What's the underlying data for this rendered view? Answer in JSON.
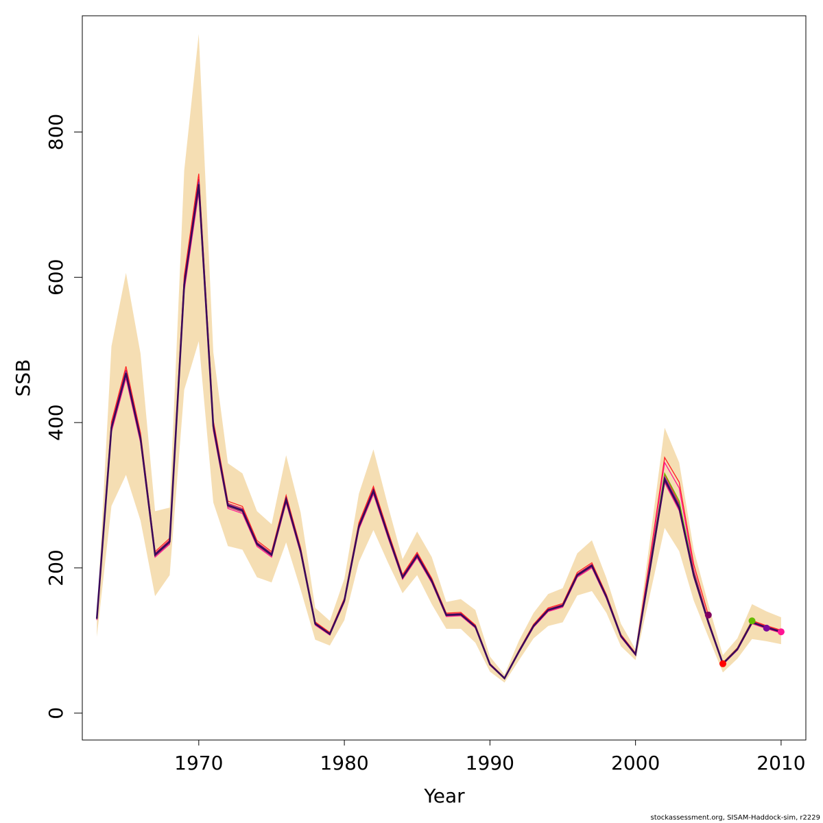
{
  "footer": "stockassessment.org, SISAM-Haddock-sim, r2229",
  "colors": {
    "band": "#f5deb3",
    "retro_lines": [
      "#ff2020",
      "#ff1493",
      "#e01050",
      "#b0306a",
      "#7030a0",
      "#6a1b6a",
      "#800080"
    ],
    "main_line": "#3a0a5a",
    "endpoints": [
      "#800060",
      "#ff0000",
      "#66bb00",
      "#7a0a9a",
      "#ff1493"
    ]
  },
  "chart_data": {
    "type": "line",
    "xlabel": "Year",
    "ylabel": "SSB",
    "xlim": [
      1962,
      2011.7
    ],
    "ylim": [
      -37,
      960
    ],
    "xticks": [
      1970,
      1980,
      1990,
      2000,
      2010
    ],
    "yticks": [
      0,
      200,
      400,
      600,
      800
    ],
    "grid": false,
    "legend": "none",
    "years": [
      1963,
      1964,
      1965,
      1966,
      1967,
      1968,
      1969,
      1970,
      1971,
      1972,
      1973,
      1974,
      1975,
      1976,
      1977,
      1978,
      1979,
      1980,
      1981,
      1982,
      1983,
      1984,
      1985,
      1986,
      1987,
      1988,
      1989,
      1990,
      1991,
      1992,
      1993,
      1994,
      1995,
      1996,
      1997,
      1998,
      1999,
      2000,
      2001,
      2002,
      2003,
      2004,
      2005,
      2006,
      2007,
      2008,
      2009,
      2010
    ],
    "ssb": [
      130,
      393,
      468,
      378,
      218,
      236,
      590,
      728,
      395,
      286,
      279,
      233,
      218,
      294,
      223,
      123,
      109,
      155,
      257,
      306,
      245,
      187,
      217,
      182,
      135,
      136,
      119,
      67,
      48,
      85,
      120,
      142,
      148,
      190,
      203,
      160,
      106,
      81,
      200,
      322,
      283,
      190,
      125,
      68,
      88,
      125,
      118,
      112
    ],
    "ssb_low": [
      105,
      285,
      328,
      265,
      161,
      190,
      445,
      512,
      290,
      230,
      225,
      187,
      180,
      235,
      170,
      101,
      93,
      128,
      208,
      252,
      207,
      165,
      190,
      150,
      116,
      116,
      97,
      57,
      42,
      73,
      103,
      120,
      125,
      162,
      168,
      138,
      92,
      73,
      164,
      255,
      223,
      155,
      105,
      56,
      75,
      102,
      99,
      95
    ],
    "ssb_high": [
      128,
      505,
      606,
      495,
      278,
      283,
      747,
      935,
      497,
      344,
      330,
      278,
      260,
      355,
      276,
      145,
      127,
      185,
      302,
      363,
      285,
      212,
      250,
      215,
      153,
      157,
      142,
      78,
      53,
      100,
      138,
      164,
      172,
      220,
      238,
      186,
      123,
      88,
      240,
      393,
      345,
      225,
      150,
      80,
      103,
      150,
      140,
      132
    ],
    "retro_peels": [
      {
        "end_year": 2005,
        "x": [
          1998,
          1999,
          2000,
          2001,
          2002,
          2003,
          2004,
          2005
        ],
        "y": [
          161,
          106,
          82,
          215,
          352,
          318,
          205,
          135
        ]
      },
      {
        "end_year": 2006,
        "x": [
          1998,
          1999,
          2000,
          2001,
          2002,
          2003,
          2004,
          2005,
          2006
        ],
        "y": [
          160,
          106,
          81,
          210,
          345,
          310,
          198,
          128,
          68
        ]
      },
      {
        "end_year": 2008,
        "x": [
          1998,
          1999,
          2000,
          2001,
          2002,
          2003,
          2004,
          2005,
          2006,
          2007,
          2008
        ],
        "y": [
          160,
          106,
          81,
          205,
          330,
          292,
          194,
          127,
          69,
          89,
          127
        ]
      },
      {
        "end_year": 2009,
        "x": [
          1998,
          1999,
          2000,
          2001,
          2002,
          2003,
          2004,
          2005,
          2006,
          2007,
          2008,
          2009
        ],
        "y": [
          160,
          106,
          81,
          202,
          325,
          286,
          192,
          126,
          68,
          88,
          125,
          117
        ]
      }
    ],
    "endpoints": [
      {
        "year": 2005,
        "value": 135
      },
      {
        "year": 2006,
        "value": 68
      },
      {
        "year": 2008,
        "value": 127
      },
      {
        "year": 2009,
        "value": 117
      },
      {
        "year": 2010,
        "value": 112
      }
    ]
  }
}
